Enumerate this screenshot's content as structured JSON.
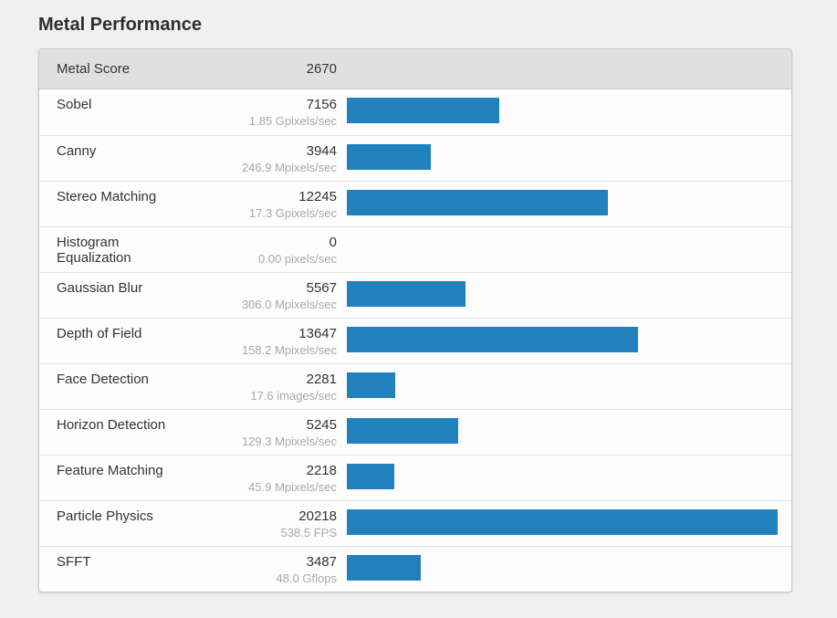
{
  "page": {
    "title": "Metal Performance",
    "background_color": "#f0f0f0"
  },
  "table": {
    "header": {
      "label": "Metal Score",
      "value": "2670"
    }
  },
  "chart_data": {
    "type": "bar",
    "orientation": "horizontal",
    "title": "Metal Performance",
    "header": {
      "label": "Metal Score",
      "value": "2670"
    },
    "categories": [
      "Sobel",
      "Canny",
      "Stereo Matching",
      "Histogram Equalization",
      "Gaussian Blur",
      "Depth of Field",
      "Face Detection",
      "Horizon Detection",
      "Feature Matching",
      "Particle Physics",
      "SFFT"
    ],
    "values": [
      7156,
      3944,
      12245,
      0,
      5567,
      13647,
      2281,
      5245,
      2218,
      20218,
      3487
    ],
    "rate_labels": [
      "1.85 Gpixels/sec",
      "246.9 Mpixels/sec",
      "17.3 Gpixels/sec",
      "0.00 pixels/sec",
      "306.0 Mpixels/sec",
      "158.2 Mpixels/sec",
      "17.6 images/sec",
      "129.3 Mpixels/sec",
      "45.9 Mpixels/sec",
      "538.5 FPS",
      "48.0 Gflops"
    ],
    "xlim": [
      0,
      20218
    ],
    "bar_color": "#2181bd",
    "grid": false,
    "legend": false
  }
}
